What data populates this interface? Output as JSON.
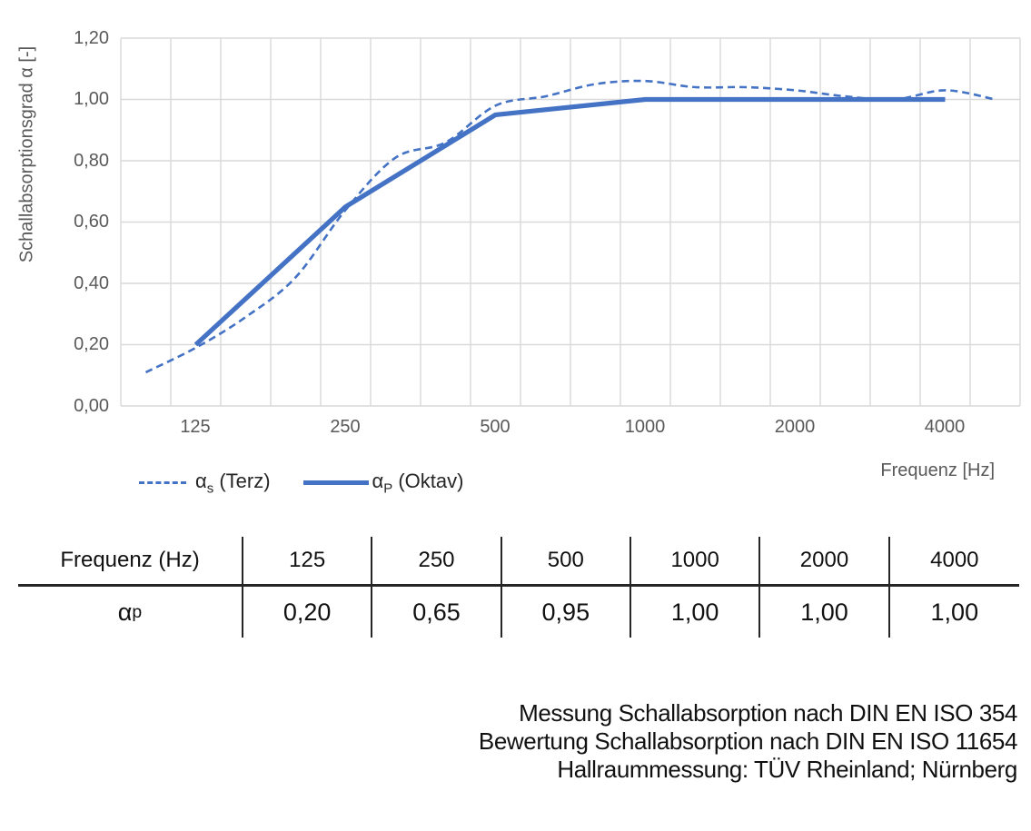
{
  "chart_data": {
    "type": "line",
    "title": "",
    "ylabel": "Schallabsorptionsgrad α [-]",
    "xlabel": "Frequenz [Hz]",
    "ylim": [
      0,
      1.2
    ],
    "grid": true,
    "legend_position": "bottom-left",
    "x_categories": [
      "100",
      "125",
      "160",
      "200",
      "250",
      "315",
      "400",
      "500",
      "630",
      "800",
      "1000",
      "1250",
      "1600",
      "2000",
      "2500",
      "3150",
      "4000",
      "5000"
    ],
    "x_tick_labels": [
      "125",
      "250",
      "500",
      "1000",
      "2000",
      "4000"
    ],
    "y_tick_labels": [
      "1,20",
      "1,00",
      "0,80",
      "0,60",
      "0,40",
      "0,20",
      "0,00"
    ],
    "series": [
      {
        "name": "αs (Terz)",
        "style": "dashed",
        "smooth": true,
        "x": [
          "100",
          "125",
          "160",
          "200",
          "250",
          "315",
          "400",
          "500",
          "630",
          "800",
          "1000",
          "1250",
          "1600",
          "2000",
          "2500",
          "3150",
          "4000",
          "5000"
        ],
        "values": [
          0.11,
          0.19,
          0.29,
          0.42,
          0.64,
          0.81,
          0.86,
          0.98,
          1.01,
          1.05,
          1.06,
          1.04,
          1.04,
          1.03,
          1.01,
          1.0,
          1.03,
          1.0
        ]
      },
      {
        "name": "αP (Oktav)",
        "style": "solid",
        "smooth": false,
        "x": [
          "125",
          "250",
          "500",
          "1000",
          "2000",
          "4000"
        ],
        "values": [
          0.2,
          0.65,
          0.95,
          1.0,
          1.0,
          1.0
        ]
      }
    ],
    "colors": {
      "line": "#4472C4",
      "grid": "#D9D9D9",
      "axis_text": "#595959"
    }
  },
  "legend": {
    "items": [
      {
        "base": "α",
        "sub": "s",
        "rest": " (Terz)"
      },
      {
        "base": "α",
        "sub": "P",
        "rest": " (Oktav)"
      }
    ]
  },
  "table": {
    "header_label": "Frequenz (Hz)",
    "headers": [
      "125",
      "250",
      "500",
      "1000",
      "2000",
      "4000"
    ],
    "row_symbol": {
      "base": "α",
      "sub": "p"
    },
    "values": [
      "0,20",
      "0,65",
      "0,95",
      "1,00",
      "1,00",
      "1,00"
    ]
  },
  "footer": {
    "lines": [
      "Messung Schallabsorption nach DIN EN ISO 354",
      "Bewertung Schallabsorption nach DIN EN ISO 11654",
      "Hallraummessung: TÜV Rheinland; Nürnberg"
    ]
  }
}
